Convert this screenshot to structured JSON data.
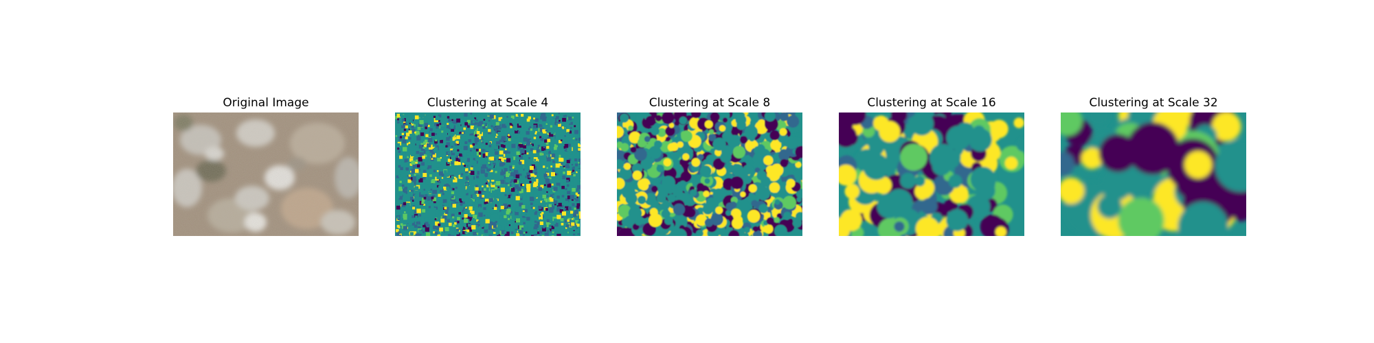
{
  "figure": {
    "panels": [
      {
        "title": "Original Image",
        "kind": "photo",
        "description_icon": "aerial-shrubland-photo"
      },
      {
        "title": "Clustering at Scale 4",
        "kind": "cluster",
        "scale": 4
      },
      {
        "title": "Clustering at Scale 8",
        "kind": "cluster",
        "scale": 8
      },
      {
        "title": "Clustering at Scale 16",
        "kind": "cluster",
        "scale": 16
      },
      {
        "title": "Clustering at Scale 32",
        "kind": "cluster",
        "scale": 32
      }
    ],
    "palette": {
      "photo_base": "#a08f7c",
      "photo_dark": "#6e6a55",
      "photo_light": "#d8d6d0",
      "photo_sand": "#b89e84",
      "cluster_colors": [
        "#440154",
        "#31688e",
        "#21918c",
        "#5ec962",
        "#fde725"
      ]
    }
  }
}
